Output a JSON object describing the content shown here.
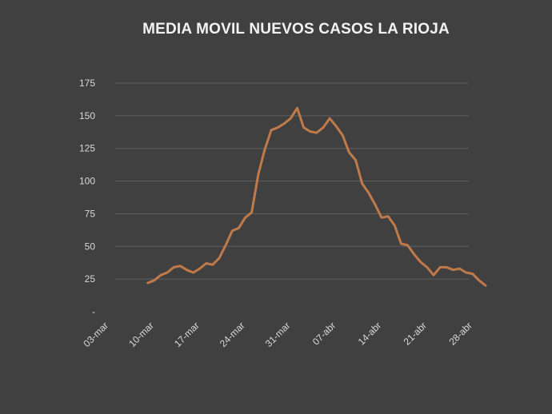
{
  "chart_data": {
    "type": "line",
    "title": "MEDIA MOVIL NUEVOS CASOS LA RIOJA",
    "xlabel": "",
    "ylabel": "",
    "ylim": [
      0,
      175
    ],
    "y_ticks": [
      0,
      25,
      50,
      75,
      100,
      125,
      150,
      175
    ],
    "y_tick_labels": [
      "-",
      "25",
      "50",
      "75",
      "100",
      "125",
      "150",
      "175"
    ],
    "x_tick_labels": [
      "03-mar",
      "10-mar",
      "17-mar",
      "24-mar",
      "31-mar",
      "07-abr",
      "14-abr",
      "21-abr",
      "28-abr"
    ],
    "x_start": "03-mar",
    "x_end": "30-abr",
    "grid": true,
    "legend": "none",
    "line_color": "#c07a4a",
    "series": [
      {
        "x": [
          "09-mar",
          "10-mar",
          "11-mar",
          "12-mar",
          "13-mar",
          "14-mar",
          "15-mar",
          "16-mar",
          "17-mar",
          "18-mar",
          "19-mar",
          "20-mar",
          "21-mar",
          "22-mar",
          "23-mar",
          "24-mar",
          "25-mar",
          "26-mar",
          "27-mar",
          "28-mar",
          "29-mar",
          "30-mar",
          "31-mar",
          "01-abr",
          "02-abr",
          "03-abr",
          "04-abr",
          "05-abr",
          "06-abr",
          "07-abr",
          "08-abr",
          "09-abr",
          "10-abr",
          "11-abr",
          "12-abr",
          "13-abr",
          "14-abr",
          "15-abr",
          "16-abr",
          "17-abr",
          "18-abr",
          "19-abr",
          "20-abr",
          "21-abr",
          "22-abr",
          "23-abr",
          "24-abr",
          "25-abr",
          "26-abr",
          "27-abr",
          "28-abr",
          "29-abr",
          "30-abr"
        ],
        "values": [
          22,
          24,
          28,
          30,
          34,
          35,
          32,
          30,
          33,
          37,
          36,
          41,
          51,
          62,
          64,
          72,
          76,
          105,
          124,
          139,
          141,
          144,
          148,
          156,
          141,
          138,
          137,
          141,
          148,
          142,
          135,
          122,
          116,
          98,
          91,
          82,
          72,
          73,
          66,
          52,
          51,
          44,
          38,
          34,
          28,
          34,
          34,
          32,
          33,
          30,
          29,
          24,
          20
        ]
      }
    ]
  }
}
